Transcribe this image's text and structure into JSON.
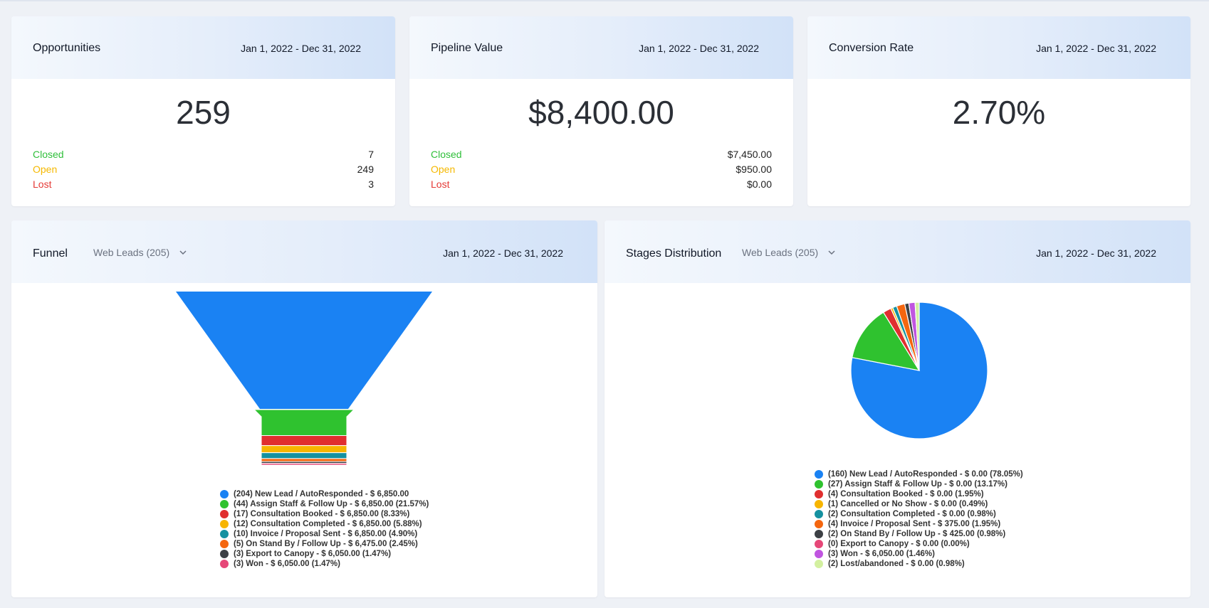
{
  "kpis": {
    "opportunities": {
      "title": "Opportunities",
      "range": "Jan 1, 2022 - Dec 31, 2022",
      "value": "259",
      "rows": [
        {
          "label": "Closed",
          "value": "7"
        },
        {
          "label": "Open",
          "value": "249"
        },
        {
          "label": "Lost",
          "value": "3"
        }
      ]
    },
    "pipeline": {
      "title": "Pipeline Value",
      "range": "Jan 1, 2022 - Dec 31, 2022",
      "value": "$8,400.00",
      "rows": [
        {
          "label": "Closed",
          "value": "$7,450.00"
        },
        {
          "label": "Open",
          "value": "$950.00"
        },
        {
          "label": "Lost",
          "value": "$0.00"
        }
      ]
    },
    "conversion": {
      "title": "Conversion Rate",
      "range": "Jan 1, 2022 - Dec 31, 2022",
      "value": "2.70%"
    }
  },
  "colors": {
    "closed": "#2fbf3a",
    "open": "#f5b800",
    "lost": "#e53935"
  },
  "funnel": {
    "title": "Funnel",
    "pipeline_select": "Web Leads (205)",
    "range": "Jan 1, 2022 - Dec 31, 2022"
  },
  "stages": {
    "title": "Stages Distribution",
    "pipeline_select": "Web Leads (205)",
    "range": "Jan 1, 2022 - Dec 31, 2022"
  },
  "chart_data": [
    {
      "type": "funnel",
      "categories": [
        "New Lead / AutoResponded",
        "Assign Staff & Follow Up",
        "Consultation Booked",
        "Consultation Completed",
        "Invoice / Proposal Sent",
        "On Stand By / Follow Up",
        "Export to Canopy",
        "Won"
      ],
      "values": [
        204,
        44,
        17,
        12,
        10,
        5,
        3,
        3
      ],
      "colors": [
        "#1a82f3",
        "#2fc22f",
        "#e02f2f",
        "#f7b500",
        "#1591a0",
        "#f4660f",
        "#3c4045",
        "#e64778"
      ],
      "legend": [
        "(204) New Lead / AutoResponded - $ 6,850.00",
        "(44) Assign Staff & Follow Up - $ 6,850.00 (21.57%)",
        "(17) Consultation Booked - $ 6,850.00 (8.33%)",
        "(12) Consultation Completed - $ 6,850.00 (5.88%)",
        "(10) Invoice / Proposal Sent - $ 6,850.00 (4.90%)",
        "(5) On Stand By / Follow Up - $ 6,475.00 (2.45%)",
        "(3) Export to Canopy - $ 6,050.00 (1.47%)",
        "(3) Won - $ 6,050.00 (1.47%)"
      ]
    },
    {
      "type": "pie",
      "categories": [
        "New Lead / AutoResponded",
        "Assign Staff & Follow Up",
        "Consultation Booked",
        "Cancelled or No Show",
        "Consultation Completed",
        "Invoice / Proposal Sent",
        "On Stand By / Follow Up",
        "Export to Canopy",
        "Won",
        "Lost/abandoned"
      ],
      "values": [
        160,
        27,
        4,
        1,
        2,
        4,
        2,
        0,
        3,
        2
      ],
      "colors": [
        "#1a82f3",
        "#2fc22f",
        "#e02f2f",
        "#f7b500",
        "#1591a0",
        "#f4660f",
        "#3c4045",
        "#e64778",
        "#c055e0",
        "#d3f0a0"
      ],
      "legend": [
        "(160) New Lead / AutoResponded - $ 0.00 (78.05%)",
        "(27) Assign Staff & Follow Up - $ 0.00 (13.17%)",
        "(4) Consultation Booked - $ 0.00 (1.95%)",
        "(1) Cancelled or No Show - $ 0.00 (0.49%)",
        "(2) Consultation Completed - $ 0.00 (0.98%)",
        "(4) Invoice / Proposal Sent - $ 375.00 (1.95%)",
        "(2) On Stand By / Follow Up - $ 425.00 (0.98%)",
        "(0) Export to Canopy - $ 0.00 (0.00%)",
        "(3) Won - $ 6,050.00 (1.46%)",
        "(2) Lost/abandoned - $ 0.00 (0.98%)"
      ]
    }
  ]
}
